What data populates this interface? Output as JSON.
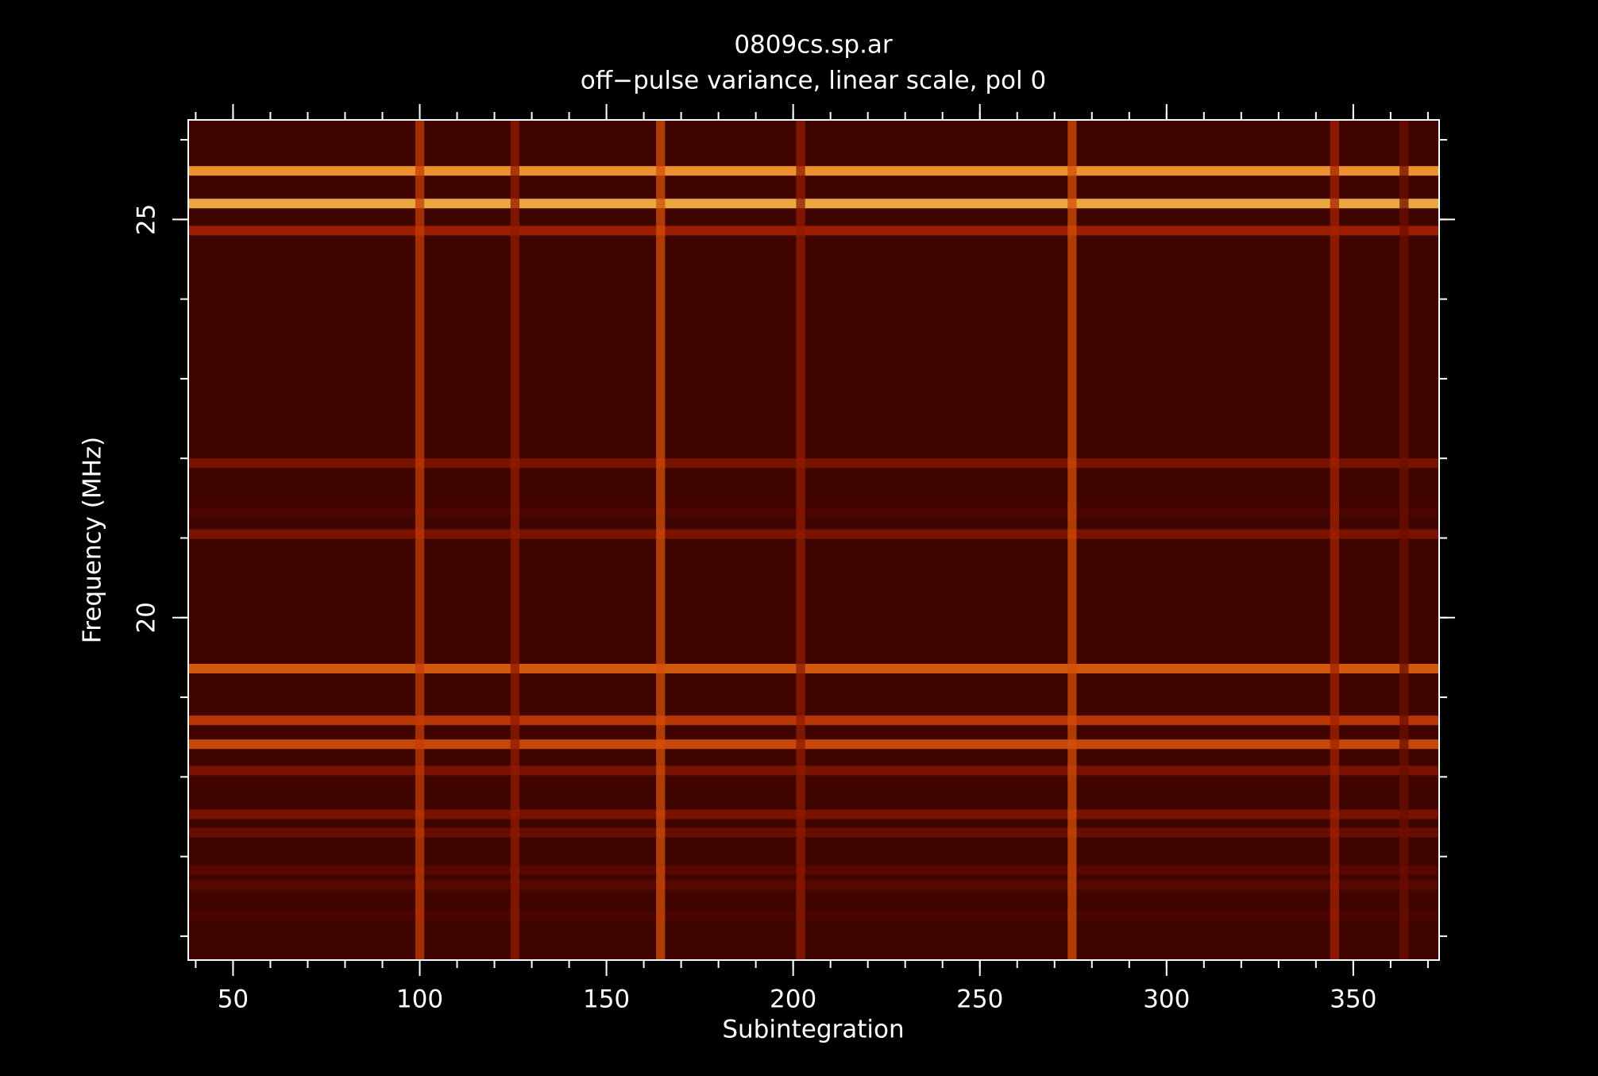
{
  "chart_data": {
    "type": "heatmap",
    "title": "0809cs.sp.ar",
    "subtitle": "off−pulse variance, linear scale, pol 0",
    "xlabel": "Subintegration",
    "ylabel": "Frequency (MHz)",
    "xlim": [
      38,
      373
    ],
    "ylim": [
      15.7,
      26.25
    ],
    "xticks": [
      50,
      100,
      150,
      200,
      250,
      300,
      350
    ],
    "yticks": [
      20,
      25
    ],
    "background": 0.15,
    "colors": [
      "#1a0000",
      "#5a0800",
      "#b82800",
      "#ff8a1a",
      "#ffff90"
    ],
    "rows": {
      "y": [
        25.61,
        25.2,
        24.86,
        21.94,
        21.33,
        21.05,
        19.36,
        18.71,
        18.41,
        18.08,
        17.53,
        17.3,
        16.83,
        16.64,
        16.26
      ],
      "values": [
        0.8,
        0.85,
        0.45,
        0.35,
        0.2,
        0.35,
        0.65,
        0.55,
        0.6,
        0.35,
        0.35,
        0.3,
        0.25,
        0.25,
        0.2
      ]
    },
    "columns": {
      "x": [
        100,
        125.5,
        164.5,
        202,
        274.7,
        345,
        363.6
      ],
      "values": [
        0.55,
        0.4,
        0.6,
        0.4,
        0.6,
        0.45,
        0.3
      ]
    }
  }
}
